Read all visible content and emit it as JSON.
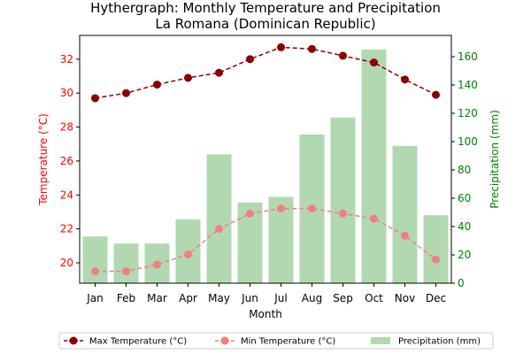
{
  "chart_data": {
    "type": "line",
    "title": "Hythergraph: Monthly Temperature and Precipitation",
    "subtitle": "La Romana (Dominican Republic)",
    "xlabel": "Month",
    "ylabel_left": "Temperature (°C)",
    "ylabel_right": "Precipitation (mm)",
    "categories": [
      "Jan",
      "Feb",
      "Mar",
      "Apr",
      "May",
      "Jun",
      "Jul",
      "Aug",
      "Sep",
      "Oct",
      "Nov",
      "Dec"
    ],
    "ylim_left": [
      18.8,
      33.4
    ],
    "ylim_right": [
      0,
      175
    ],
    "yticks_left": [
      20,
      22,
      24,
      26,
      28,
      30,
      32
    ],
    "yticks_right": [
      0,
      20,
      40,
      60,
      80,
      100,
      120,
      140,
      160
    ],
    "grid": false,
    "legend_position": "bottom-center",
    "series": [
      {
        "name": "Max Temperature (°C)",
        "axis": "left",
        "kind": "line",
        "color": "#8b0000",
        "values": [
          29.7,
          30.0,
          30.5,
          30.9,
          31.2,
          32.0,
          32.7,
          32.6,
          32.2,
          31.8,
          30.8,
          29.9
        ]
      },
      {
        "name": "Min Temperature (°C)",
        "axis": "left",
        "kind": "line",
        "color": "#f08080",
        "values": [
          19.5,
          19.5,
          19.9,
          20.5,
          22.0,
          22.9,
          23.2,
          23.2,
          22.9,
          22.6,
          21.6,
          20.2
        ]
      },
      {
        "name": "Precipitation (mm)",
        "axis": "right",
        "kind": "bar",
        "color": "#b2d8b2",
        "values": [
          33,
          28,
          28,
          45,
          91,
          57,
          61,
          105,
          117,
          165,
          97,
          48
        ]
      }
    ],
    "colors": {
      "left_axis": "#ff0000",
      "right_axis": "#008000"
    }
  }
}
